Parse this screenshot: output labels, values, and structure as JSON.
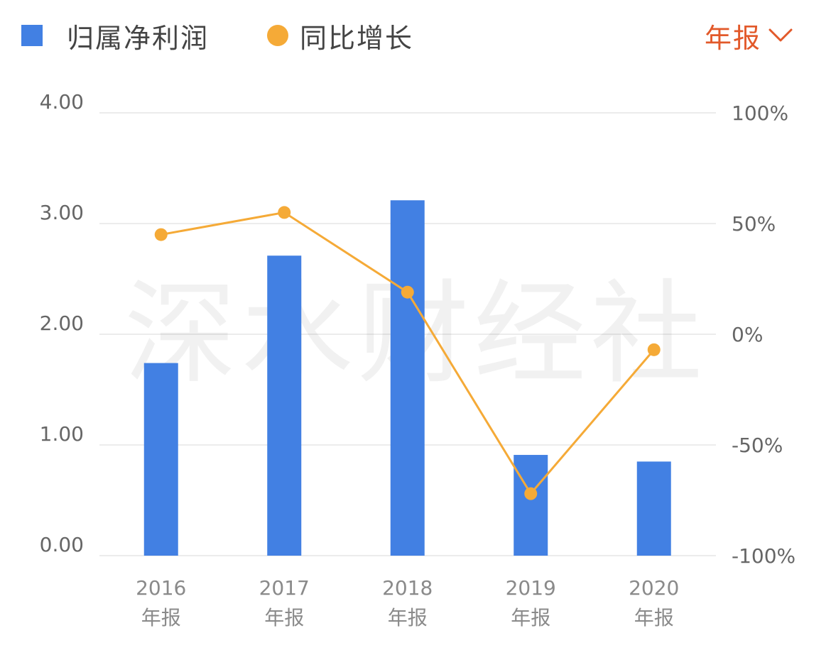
{
  "legend": {
    "bar_label": "归属净利润",
    "line_label": "同比增长"
  },
  "period_selector": {
    "label": "年报",
    "icon": "chevron-down-icon"
  },
  "watermark": "深水财经社",
  "colors": {
    "bar": "#4280e3",
    "line": "#f5aa37",
    "accent": "#e2592a",
    "grid": "#ececec"
  },
  "chart_data": {
    "type": "bar",
    "categories": [
      "2016",
      "2017",
      "2018",
      "2019",
      "2020"
    ],
    "category_sub_label": "年报",
    "series": [
      {
        "type": "bar",
        "axis": "left",
        "values": [
          1.74,
          2.71,
          3.21,
          0.91,
          0.85
        ]
      },
      {
        "type": "line",
        "axis": "right",
        "unit": "%",
        "values": [
          45,
          55,
          19,
          -72,
          -7
        ]
      }
    ],
    "y_left": {
      "ticks": [
        "0.00",
        "1.00",
        "2.00",
        "3.00",
        "4.00"
      ],
      "range": [
        0,
        4
      ]
    },
    "y_right": {
      "ticks": [
        "-100%",
        "-50%",
        "0%",
        "50%",
        "100%"
      ],
      "range": [
        -100,
        100
      ]
    },
    "grid": true,
    "legend_position": "top-left"
  }
}
